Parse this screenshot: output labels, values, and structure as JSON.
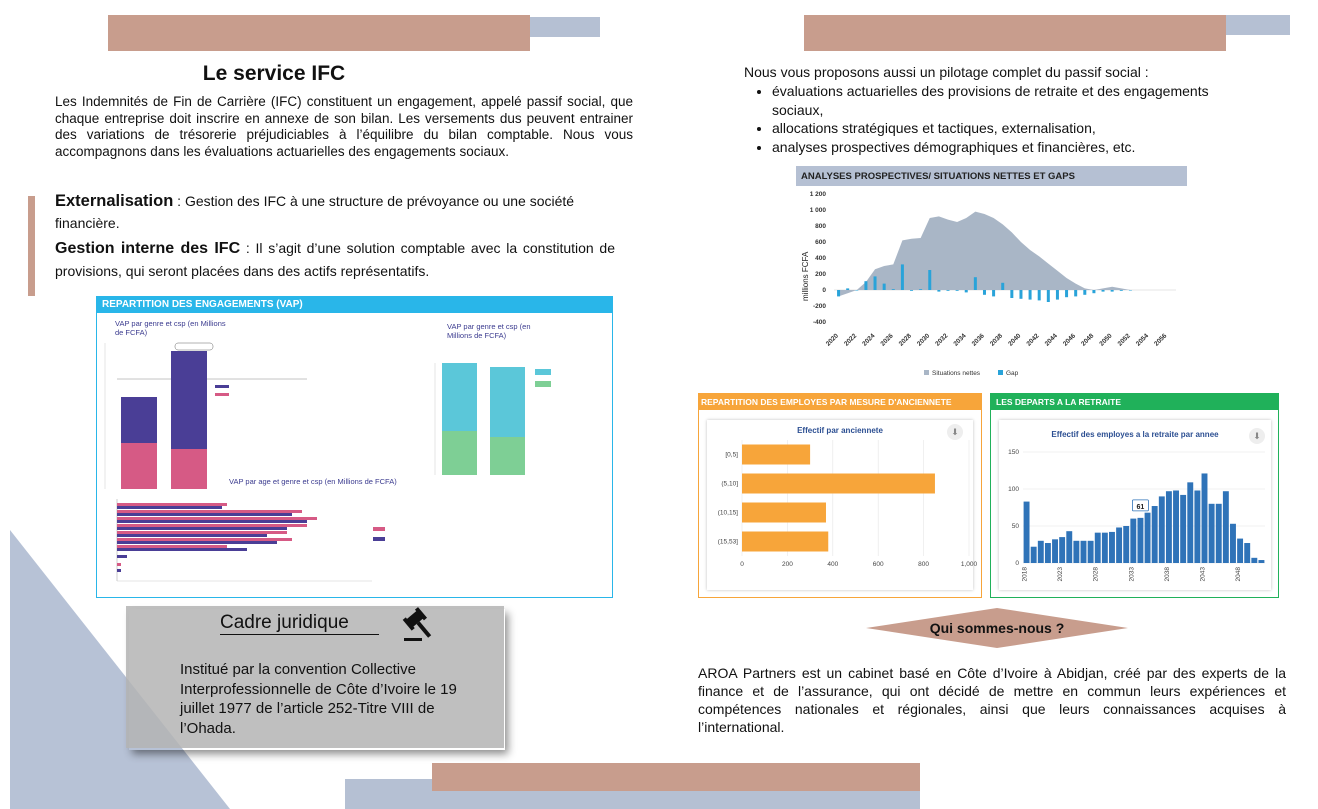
{
  "colors": {
    "rose": "#c89d8d",
    "blue_grey": "#b5c0d3",
    "cyan": "#29b6e9",
    "orange": "#f7a53a",
    "green": "#20b15a",
    "bar_blue": "#2f73b8"
  },
  "left": {
    "title": "Le service IFC",
    "intro": "Les Indemnités de Fin de Carrière (IFC) constituent un engagement, appelé passif social, que chaque entreprise doit inscrire en annexe de son bilan. Les versements dus peuvent entrainer des variations de trésorerie préjudiciables à l’équilibre du bilan comptable. Nous vous accompagnons dans  les évaluations actuarielles des engagements sociaux.",
    "ext_label": "Externalisation",
    "ext_text": " : Gestion des IFC à une structure de prévoyance ou une société financière.",
    "gi_label": "Gestion interne des IFC",
    "gi_text": " : Il s’agit d’une solution comptable avec la constitution de provisions, qui seront placées dans des actifs représentatifs.",
    "vap_panel": {
      "header": "REPARTITION DES ENGAGEMENTS (VAP)",
      "chart1_title": "VAP par genre et csp (en Millions de FCFA)",
      "chart2_title": "VAP par genre et csp (en Millions de FCFA)",
      "chart3_title": "VAP par  age et genre et csp (en Millions de FCFA)"
    },
    "cadre": {
      "title": "Cadre juridique",
      "icon": "gavel-icon",
      "text": "Institué par la convention Collective Interprofessionnelle de Côte d’Ivoire le 19 juillet 1977 de l’article 252-Titre VIII de l’Ohada."
    }
  },
  "right": {
    "intro": "Nous vous proposons aussi un pilotage complet du passif social :",
    "bullets": [
      "évaluations actuarielles des provisions de retraite et des engagements sociaux,",
      "allocations stratégiques et tactiques, externalisation,",
      "analyses prospectives démographiques et financières, etc."
    ],
    "qui_title": "Qui sommes-nous ?",
    "about": "AROA Partners est un cabinet basé en Côte d’Ivoire à Abidjan, créé par des experts de la finance et de l’assurance, qui ont décidé de mettre en commun leurs expériences et compétences nationales et régionales, ainsi que leurs connaissances acquises à l’international."
  },
  "chart_data": [
    {
      "type": "area",
      "title": "ANALYSES PROSPECTIVES/ SITUATIONS NETTES ET GAPS",
      "ylabel": "millions FCFA",
      "ylim": [
        -400,
        1200
      ],
      "yticks": [
        "1 200",
        "1 000",
        "800",
        "600",
        "400",
        "200",
        "0",
        "-200",
        "-400"
      ],
      "xticks": [
        "2020",
        "2022",
        "2024",
        "2026",
        "2028",
        "2030",
        "2032",
        "2034",
        "2036",
        "2038",
        "2040",
        "2042",
        "2044",
        "2046",
        "2048",
        "2050",
        "2052",
        "2054",
        "2056"
      ],
      "legend_position": "bottom",
      "series": [
        {
          "name": "Situations nettes",
          "type": "area",
          "x": [
            2020,
            2021,
            2022,
            2023,
            2024,
            2025,
            2026,
            2027,
            2028,
            2029,
            2030,
            2031,
            2032,
            2033,
            2034,
            2035,
            2036,
            2037,
            2038,
            2039,
            2040,
            2041,
            2042,
            2043,
            2044,
            2045,
            2046,
            2047,
            2048,
            2049,
            2050,
            2051,
            2052
          ],
          "values": [
            -80,
            -40,
            0,
            100,
            260,
            300,
            320,
            620,
            640,
            650,
            900,
            920,
            880,
            850,
            900,
            980,
            950,
            900,
            820,
            720,
            600,
            500,
            420,
            330,
            240,
            150,
            80,
            20,
            0,
            20,
            40,
            20,
            0
          ]
        },
        {
          "name": "Gap",
          "type": "bar",
          "x": [
            2020,
            2021,
            2022,
            2023,
            2024,
            2025,
            2026,
            2027,
            2028,
            2029,
            2030,
            2031,
            2032,
            2033,
            2034,
            2035,
            2036,
            2037,
            2038,
            2039,
            2040,
            2041,
            2042,
            2043,
            2044,
            2045,
            2046,
            2047,
            2048,
            2049,
            2050,
            2051,
            2052
          ],
          "values": [
            -80,
            20,
            0,
            110,
            170,
            80,
            10,
            320,
            -10,
            10,
            250,
            -20,
            -10,
            -10,
            -30,
            160,
            -60,
            -80,
            90,
            -100,
            -110,
            -120,
            -130,
            -150,
            -120,
            -90,
            -80,
            -60,
            -40,
            -20,
            -20,
            -10,
            0
          ]
        }
      ]
    },
    {
      "type": "bar",
      "title": "REPARTITION DES EMPLOYES PAR MESURE D'ANCIENNETE",
      "subtitle": "Effectif par anciennete",
      "orientation": "horizontal",
      "categories": [
        "[0,5]",
        "(5,10]",
        "(10,15]",
        "(15,53]"
      ],
      "values": [
        300,
        850,
        370,
        380
      ],
      "xlim": [
        0,
        1000
      ],
      "xticks": [
        "0",
        "200",
        "400",
        "600",
        "800",
        "1,000"
      ]
    },
    {
      "type": "bar",
      "title": "LES DEPARTS A LA RETRAITE",
      "subtitle": "Effectif des employes a la retraite par annee",
      "categories": [
        "2018",
        "2019",
        "2020",
        "2021",
        "2022",
        "2023",
        "2024",
        "2025",
        "2026",
        "2027",
        "2028",
        "2029",
        "2030",
        "2031",
        "2032",
        "2033",
        "2034",
        "2035",
        "2036",
        "2037",
        "2038",
        "2039",
        "2040",
        "2041",
        "2042",
        "2043",
        "2044",
        "2045",
        "2046",
        "2047",
        "2048",
        "2049",
        "2050",
        "2051"
      ],
      "values": [
        83,
        22,
        30,
        27,
        32,
        35,
        43,
        30,
        30,
        30,
        41,
        41,
        42,
        48,
        50,
        60,
        61,
        68,
        77,
        90,
        97,
        98,
        92,
        109,
        98,
        121,
        80,
        80,
        97,
        53,
        33,
        27,
        7,
        4
      ],
      "ylim": [
        0,
        150
      ],
      "yticks": [
        "0",
        "50",
        "100",
        "150"
      ],
      "xticks": [
        "2018",
        "2023",
        "2028",
        "2033",
        "2038",
        "2043",
        "2048"
      ],
      "annotation": "61"
    }
  ]
}
